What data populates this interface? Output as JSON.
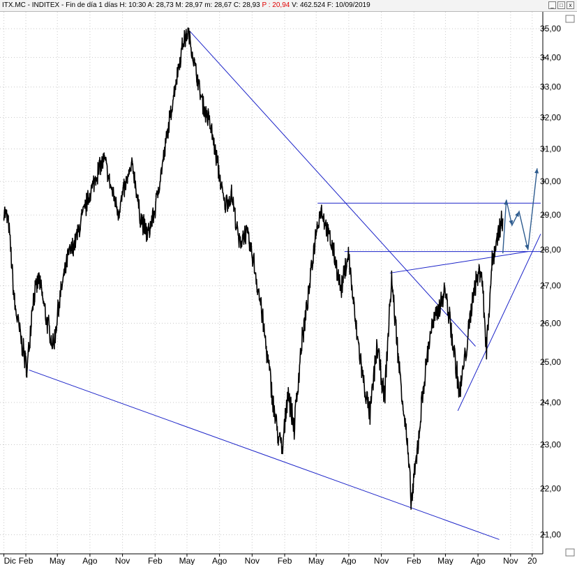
{
  "titlebar": {
    "symbol": "ITX.MC - INDITEX - Fin de día 1 días",
    "h": "H: 10:30",
    "a": "A: 28,73",
    "m": "M: 28,97",
    "mn": "m: 28,67",
    "c": "C: 28,93",
    "p": "P : 20,94",
    "v": "V: 462.524",
    "f": "F: 10/09/2019",
    "buttons": [
      "_",
      "□",
      "x"
    ]
  },
  "colors": {
    "price": "#000000",
    "trendline": "#1a22c8",
    "forecast": "#2e5c8f",
    "grid": "#c8c8c8",
    "p_label": "#e00000"
  },
  "chart_data": {
    "type": "line",
    "title": "",
    "xlabel": "",
    "ylabel": "",
    "y_scale": "log",
    "ylim": [
      20.6,
      35.6
    ],
    "grid": true,
    "y_ticks": [
      "35,00",
      "34,00",
      "33,00",
      "32,00",
      "31,00",
      "30,00",
      "29,00",
      "28,00",
      "27,00",
      "26,00",
      "25,00",
      "24,00",
      "23,00",
      "22,00",
      "21,00"
    ],
    "y_tick_values": [
      35,
      34,
      33,
      32,
      31,
      30,
      29,
      28,
      27,
      26,
      25,
      24,
      23,
      22,
      21
    ],
    "x_ticks": [
      "Dic",
      "Feb",
      "May",
      "Ago",
      "Nov",
      "Feb",
      "May",
      "Ago",
      "Nov",
      "Feb",
      "May",
      "Ago",
      "Nov",
      "Feb",
      "May",
      "Ago",
      "Nov",
      "20"
    ],
    "x_tick_dates": [
      "2014-12",
      "2015-02",
      "2015-05",
      "2015-08",
      "2015-11",
      "2016-02",
      "2016-05",
      "2016-08",
      "2016-11",
      "2017-02",
      "2017-05",
      "2017-08",
      "2017-11",
      "2018-02",
      "2018-05",
      "2018-08",
      "2018-11",
      "2019-01"
    ],
    "series": [
      {
        "values": [
          [
            "2014-12-01",
            29.2
          ],
          [
            "2014-12-15",
            28.7
          ],
          [
            "2014-12-31",
            26.5
          ],
          [
            "2015-01-20",
            25.5
          ],
          [
            "2015-02-05",
            24.8
          ],
          [
            "2015-02-20",
            26.6
          ],
          [
            "2015-03-10",
            27.2
          ],
          [
            "2015-03-31",
            26.1
          ],
          [
            "2015-04-20",
            25.4
          ],
          [
            "2015-05-10",
            26.8
          ],
          [
            "2015-05-31",
            27.8
          ],
          [
            "2015-06-20",
            28.2
          ],
          [
            "2015-07-10",
            28.9
          ],
          [
            "2015-07-31",
            29.6
          ],
          [
            "2015-08-20",
            30.2
          ],
          [
            "2015-09-10",
            30.7
          ],
          [
            "2015-09-30",
            29.8
          ],
          [
            "2015-10-20",
            29.1
          ],
          [
            "2015-11-10",
            29.9
          ],
          [
            "2015-11-30",
            30.5
          ],
          [
            "2015-12-20",
            29.0
          ],
          [
            "2016-01-10",
            28.4
          ],
          [
            "2016-01-31",
            29.1
          ],
          [
            "2016-02-20",
            30.4
          ],
          [
            "2016-03-10",
            31.7
          ],
          [
            "2016-03-31",
            33.2
          ],
          [
            "2016-04-20",
            34.5
          ],
          [
            "2016-05-05",
            34.9
          ],
          [
            "2016-05-25",
            33.6
          ],
          [
            "2016-06-15",
            32.4
          ],
          [
            "2016-07-05",
            31.8
          ],
          [
            "2016-07-25",
            30.6
          ],
          [
            "2016-08-15",
            29.3
          ],
          [
            "2016-09-05",
            29.6
          ],
          [
            "2016-09-25",
            28.2
          ],
          [
            "2016-10-15",
            28.5
          ],
          [
            "2016-11-05",
            27.7
          ],
          [
            "2016-11-25",
            26.5
          ],
          [
            "2016-12-15",
            25.1
          ],
          [
            "2017-01-05",
            23.6
          ],
          [
            "2017-01-25",
            22.8
          ],
          [
            "2017-02-10",
            24.3
          ],
          [
            "2017-02-28",
            23.4
          ],
          [
            "2017-03-20",
            25.4
          ],
          [
            "2017-04-10",
            26.8
          ],
          [
            "2017-04-30",
            28.5
          ],
          [
            "2017-05-15",
            29.2
          ],
          [
            "2017-05-31",
            28.6
          ],
          [
            "2017-06-20",
            27.9
          ],
          [
            "2017-07-10",
            26.9
          ],
          [
            "2017-07-31",
            27.9
          ],
          [
            "2017-08-20",
            26.0
          ],
          [
            "2017-09-10",
            24.6
          ],
          [
            "2017-09-30",
            23.7
          ],
          [
            "2017-10-20",
            25.4
          ],
          [
            "2017-11-10",
            24.1
          ],
          [
            "2017-11-30",
            27.2
          ],
          [
            "2017-12-20",
            25.0
          ],
          [
            "2018-01-10",
            23.3
          ],
          [
            "2018-01-25",
            21.7
          ],
          [
            "2018-02-10",
            22.8
          ],
          [
            "2018-02-28",
            24.4
          ],
          [
            "2018-03-20",
            25.8
          ],
          [
            "2018-04-10",
            26.3
          ],
          [
            "2018-04-30",
            26.9
          ],
          [
            "2018-05-20",
            25.6
          ],
          [
            "2018-06-10",
            24.2
          ],
          [
            "2018-06-30",
            25.4
          ],
          [
            "2018-07-20",
            26.9
          ],
          [
            "2018-08-10",
            27.5
          ],
          [
            "2018-08-25",
            25.3
          ],
          [
            "2018-09-10",
            27.7
          ],
          [
            "2018-09-30",
            28.6
          ],
          [
            "2018-10-10",
            28.9
          ]
        ]
      }
    ],
    "trendlines": [
      {
        "from": [
          "2015-02-10",
          24.8
        ],
        "to": [
          "2018-09-30",
          20.9
        ]
      },
      {
        "from": [
          "2016-05-10",
          34.9
        ],
        "to": [
          "2018-07-25",
          25.4
        ]
      },
      {
        "from": [
          "2017-05-05",
          29.35
        ],
        "to": [
          "2019-01-25",
          29.35
        ]
      },
      {
        "from": [
          "2017-07-20",
          27.95
        ],
        "to": [
          "2019-01-25",
          27.95
        ]
      },
      {
        "from": [
          "2017-11-25",
          27.35
        ],
        "to": [
          "2018-12-20",
          27.95
        ]
      },
      {
        "from": [
          "2018-06-05",
          23.8
        ],
        "to": [
          "2019-01-25",
          28.45
        ]
      }
    ],
    "forecast_path": [
      [
        "2018-10-10",
        27.9
      ],
      [
        "2018-10-20",
        29.45
      ],
      [
        "2018-11-05",
        28.7
      ],
      [
        "2018-11-25",
        29.1
      ],
      [
        "2018-12-20",
        28.0
      ],
      [
        "2019-01-15",
        30.4
      ]
    ]
  }
}
